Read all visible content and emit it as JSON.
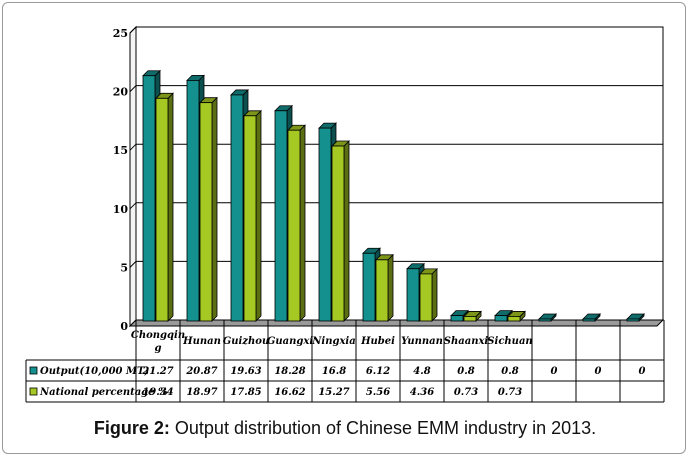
{
  "caption": {
    "label": "Figure 2:",
    "text": "Output distribution of Chinese EMM industry in 2013."
  },
  "chart_data": {
    "type": "bar",
    "categories": [
      "Chongqin g",
      "Hunan",
      "Guizhou",
      "Guangxi",
      "Ningxia",
      "Hubei",
      "Yunnan",
      "Shaanxi",
      "Sichuan",
      "",
      "",
      ""
    ],
    "series": [
      {
        "name": "Output(10,000 MT)",
        "values": [
          21.27,
          20.87,
          19.63,
          18.28,
          16.8,
          6.12,
          4.8,
          0.8,
          0.8,
          0,
          0,
          0
        ],
        "labels": [
          "21.27",
          "20.87",
          "19.63",
          "18.28",
          "16.8",
          "6.12",
          "4.8",
          "0.8",
          "0.8",
          "0",
          "0",
          "0"
        ],
        "color": "#14908f"
      },
      {
        "name": "National percentage %",
        "values": [
          19.34,
          18.97,
          17.85,
          16.62,
          15.27,
          5.56,
          4.36,
          0.73,
          0.73,
          null,
          null,
          null
        ],
        "labels": [
          "19.34",
          "18.97",
          "17.85",
          "16.62",
          "15.27",
          "5.56",
          "4.36",
          "0.73",
          "0.73",
          "",
          "",
          ""
        ],
        "color": "#a6c822"
      }
    ],
    "yticks": [
      "0",
      "5",
      "10",
      "15",
      "20",
      "25"
    ],
    "ylim": [
      0,
      25
    ],
    "grid": true,
    "data_table": true
  }
}
